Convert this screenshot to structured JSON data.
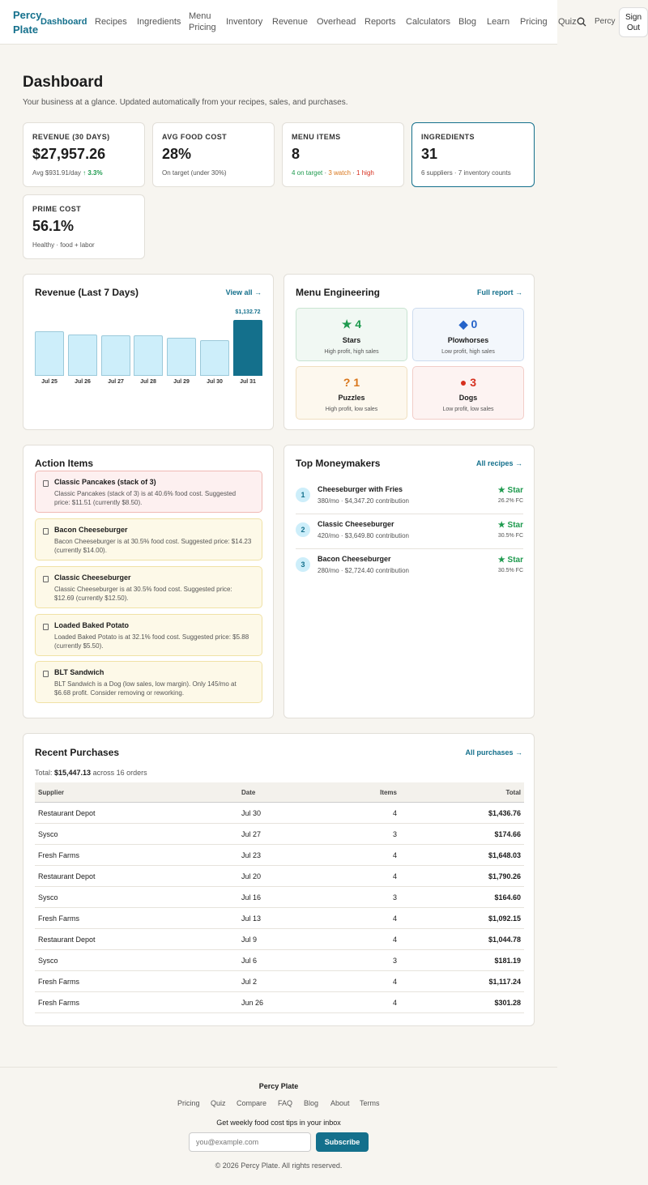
{
  "header": {
    "logo": "Percy Plate",
    "nav": [
      "Dashboard",
      "Recipes",
      "Ingredients",
      "Menu Pricing",
      "Inventory",
      "Revenue",
      "Overhead",
      "Reports",
      "Calculators",
      "Blog",
      "Learn",
      "Pricing",
      "Quiz"
    ],
    "active": "Dashboard",
    "user": "Percy",
    "signout": "Sign Out"
  },
  "page": {
    "title": "Dashboard",
    "subtitle": "Your business at a glance. Updated automatically from your recipes, sales, and purchases."
  },
  "stats": {
    "revenue": {
      "label": "REVENUE (30 DAYS)",
      "value": "$27,957.26",
      "note": "Avg $931.91/day",
      "delta": "↑ 3.3%"
    },
    "food_cost": {
      "label": "AVG FOOD COST",
      "value": "28%",
      "note": "On target (under 30%)"
    },
    "menu_items": {
      "label": "MENU ITEMS",
      "value": "8",
      "on_target": "4 on target",
      "watch": "3 watch",
      "high": "1 high",
      "sep": " · "
    },
    "ingredients": {
      "label": "INGREDIENTS",
      "value": "31",
      "note": "6 suppliers · 7 inventory counts"
    },
    "prime_cost": {
      "label": "PRIME COST",
      "value": "56.1%",
      "note": "Healthy · food + labor"
    }
  },
  "revenue_chart": {
    "title": "Revenue (Last 7 Days)",
    "link": "View all →",
    "highlight_label": "$1,132.72"
  },
  "chart_data": {
    "type": "bar",
    "categories": [
      "Jul 25",
      "Jul 26",
      "Jul 27",
      "Jul 28",
      "Jul 29",
      "Jul 30",
      "Jul 31"
    ],
    "values": [
      900,
      845,
      815,
      815,
      765,
      715,
      1132.72
    ],
    "ylim": [
      0,
      1132.72
    ],
    "colors": {
      "default": "#cdeefa",
      "highlight": "#14708c"
    }
  },
  "menu_engineering": {
    "title": "Menu Engineering",
    "link": "Full report →",
    "quadrants": [
      {
        "icon": "★",
        "count": "4",
        "name": "Stars",
        "desc": "High profit, high sales",
        "color": "#1e9a4e"
      },
      {
        "icon": "◆",
        "count": "0",
        "name": "Plowhorses",
        "desc": "Low profit, high sales",
        "color": "#2563c9"
      },
      {
        "icon": "?",
        "count": "1",
        "name": "Puzzles",
        "desc": "High profit, low sales",
        "color": "#d9761b"
      },
      {
        "icon": "●",
        "count": "3",
        "name": "Dogs",
        "desc": "Low profit, low sales",
        "color": "#d6301f"
      }
    ]
  },
  "action_items": {
    "title": "Action Items",
    "items": [
      {
        "title": "Classic Pancakes (stack of 3)",
        "desc": "Classic Pancakes (stack of 3) is at 40.6% food cost. Suggested price: $11.51 (currently $8.50).",
        "level": "high"
      },
      {
        "title": "Bacon Cheeseburger",
        "desc": "Bacon Cheeseburger is at 30.5% food cost. Suggested price: $14.23 (currently $14.00).",
        "level": "watch"
      },
      {
        "title": "Classic Cheeseburger",
        "desc": "Classic Cheeseburger is at 30.5% food cost. Suggested price: $12.69 (currently $12.50).",
        "level": "watch"
      },
      {
        "title": "Loaded Baked Potato",
        "desc": "Loaded Baked Potato is at 32.1% food cost. Suggested price: $5.88 (currently $5.50).",
        "level": "watch"
      },
      {
        "title": "BLT Sandwich",
        "desc": "BLT Sandwich is a Dog (low sales, low margin). Only 145/mo at $6.68 profit. Consider removing or reworking.",
        "level": "watch"
      }
    ]
  },
  "moneymakers": {
    "title": "Top Moneymakers",
    "link": "All recipes →",
    "items": [
      {
        "rank": "1",
        "name": "Cheeseburger with Fries",
        "detail": "380/mo · $4,347.20 contribution",
        "badge": "★ Star",
        "fc": "26.2% FC"
      },
      {
        "rank": "2",
        "name": "Classic Cheeseburger",
        "detail": "420/mo · $3,649.80 contribution",
        "badge": "★ Star",
        "fc": "30.5% FC"
      },
      {
        "rank": "3",
        "name": "Bacon Cheeseburger",
        "detail": "280/mo · $2,724.40 contribution",
        "badge": "★ Star",
        "fc": "30.5% FC"
      }
    ]
  },
  "purchases": {
    "title": "Recent Purchases",
    "link": "All purchases →",
    "total_prefix": "Total: ",
    "total": "$15,447.13",
    "total_suffix": " across 16 orders",
    "columns": [
      "Supplier",
      "Date",
      "Items",
      "Total"
    ],
    "rows": [
      [
        "Restaurant Depot",
        "Jul 30",
        "4",
        "$1,436.76"
      ],
      [
        "Sysco",
        "Jul 27",
        "3",
        "$174.66"
      ],
      [
        "Fresh Farms",
        "Jul 23",
        "4",
        "$1,648.03"
      ],
      [
        "Restaurant Depot",
        "Jul 20",
        "4",
        "$1,790.26"
      ],
      [
        "Sysco",
        "Jul 16",
        "3",
        "$164.60"
      ],
      [
        "Fresh Farms",
        "Jul 13",
        "4",
        "$1,092.15"
      ],
      [
        "Restaurant Depot",
        "Jul 9",
        "4",
        "$1,044.78"
      ],
      [
        "Sysco",
        "Jul 6",
        "3",
        "$181.19"
      ],
      [
        "Fresh Farms",
        "Jul 2",
        "4",
        "$1,117.24"
      ],
      [
        "Fresh Farms",
        "Jun 26",
        "4",
        "$301.28"
      ]
    ]
  },
  "footer": {
    "brand": "Percy Plate",
    "links": [
      "Pricing",
      "Quiz",
      "Compare",
      "FAQ",
      "Blog",
      "About",
      "Terms"
    ],
    "tip": "Get weekly food cost tips in your inbox",
    "email_placeholder": "you@example.com",
    "subscribe": "Subscribe",
    "copyright": "© 2026 Percy Plate. All rights reserved."
  }
}
